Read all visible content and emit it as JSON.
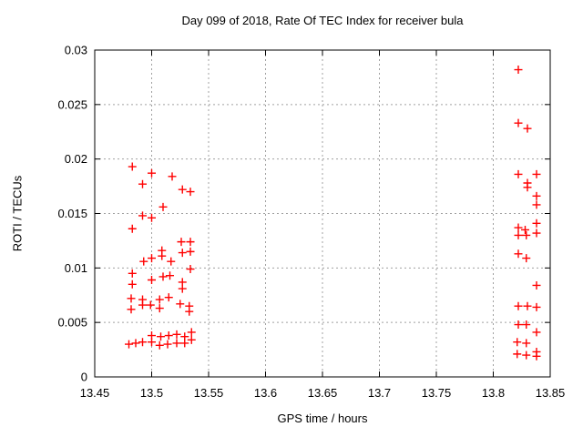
{
  "figure": {
    "title": "Day 099 of 2018, Rate Of TEC Index for receiver bula",
    "xlabel": "GPS time / hours",
    "ylabel": "ROTI / TECUs"
  },
  "chart_data": {
    "type": "scatter",
    "title": "Day 099 of 2018, Rate Of TEC Index for receiver bula",
    "xlabel": "GPS time / hours",
    "ylabel": "ROTI / TECUs",
    "xlim": [
      13.45,
      13.85
    ],
    "ylim": [
      0,
      0.03
    ],
    "xtick_labels": [
      "13.45",
      "13.5",
      "13.55",
      "13.6",
      "13.65",
      "13.7",
      "13.75",
      "13.8",
      "13.85"
    ],
    "ytick_labels": [
      "0",
      "0.005",
      "0.01",
      "0.015",
      "0.02",
      "0.025",
      "0.03"
    ],
    "grid": true,
    "grid_color": "#a0a0a0",
    "border_color": "#000000",
    "legend": "none",
    "series": [
      {
        "name": "ROTI",
        "marker": "plus",
        "color": "#ff0000",
        "points": [
          [
            13.483,
            0.0193
          ],
          [
            13.492,
            0.0177
          ],
          [
            13.5,
            0.0187
          ],
          [
            13.518,
            0.0184
          ],
          [
            13.527,
            0.0172
          ],
          [
            13.534,
            0.017
          ],
          [
            13.51,
            0.0156
          ],
          [
            13.492,
            0.0148
          ],
          [
            13.5,
            0.0146
          ],
          [
            13.483,
            0.0136
          ],
          [
            13.526,
            0.0124
          ],
          [
            13.534,
            0.0124
          ],
          [
            13.509,
            0.0116
          ],
          [
            13.509,
            0.0111
          ],
          [
            13.527,
            0.0114
          ],
          [
            13.534,
            0.0115
          ],
          [
            13.493,
            0.0106
          ],
          [
            13.5,
            0.0109
          ],
          [
            13.517,
            0.0106
          ],
          [
            13.534,
            0.0099
          ],
          [
            13.483,
            0.0095
          ],
          [
            13.5,
            0.0089
          ],
          [
            13.51,
            0.0092
          ],
          [
            13.516,
            0.0093
          ],
          [
            13.483,
            0.0085
          ],
          [
            13.527,
            0.0087
          ],
          [
            13.527,
            0.0081
          ],
          [
            13.482,
            0.0072
          ],
          [
            13.482,
            0.0062
          ],
          [
            13.492,
            0.0071
          ],
          [
            13.492,
            0.0066
          ],
          [
            13.499,
            0.0066
          ],
          [
            13.507,
            0.0071
          ],
          [
            13.507,
            0.0063
          ],
          [
            13.515,
            0.0073
          ],
          [
            13.525,
            0.0067
          ],
          [
            13.533,
            0.0065
          ],
          [
            13.533,
            0.006
          ],
          [
            13.48,
            0.003
          ],
          [
            13.486,
            0.0031
          ],
          [
            13.492,
            0.0032
          ],
          [
            13.5,
            0.0038
          ],
          [
            13.5,
            0.0032
          ],
          [
            13.508,
            0.0037
          ],
          [
            13.507,
            0.0029
          ],
          [
            13.515,
            0.0038
          ],
          [
            13.514,
            0.003
          ],
          [
            13.522,
            0.0039
          ],
          [
            13.522,
            0.0031
          ],
          [
            13.529,
            0.0037
          ],
          [
            13.529,
            0.0031
          ],
          [
            13.535,
            0.0041
          ],
          [
            13.535,
            0.0034
          ],
          [
            13.822,
            0.0282
          ],
          [
            13.822,
            0.0233
          ],
          [
            13.83,
            0.0228
          ],
          [
            13.822,
            0.0186
          ],
          [
            13.838,
            0.0186
          ],
          [
            13.83,
            0.0178
          ],
          [
            13.83,
            0.0174
          ],
          [
            13.838,
            0.0166
          ],
          [
            13.838,
            0.0158
          ],
          [
            13.822,
            0.0137
          ],
          [
            13.828,
            0.0135
          ],
          [
            13.838,
            0.0141
          ],
          [
            13.838,
            0.0132
          ],
          [
            13.822,
            0.013
          ],
          [
            13.829,
            0.013
          ],
          [
            13.822,
            0.0113
          ],
          [
            13.829,
            0.0109
          ],
          [
            13.838,
            0.0084
          ],
          [
            13.822,
            0.0065
          ],
          [
            13.83,
            0.0065
          ],
          [
            13.838,
            0.0064
          ],
          [
            13.822,
            0.0048
          ],
          [
            13.829,
            0.0048
          ],
          [
            13.838,
            0.0041
          ],
          [
            13.821,
            0.0032
          ],
          [
            13.829,
            0.0031
          ],
          [
            13.838,
            0.0023
          ],
          [
            13.821,
            0.0021
          ],
          [
            13.829,
            0.002
          ],
          [
            13.838,
            0.0019
          ]
        ]
      }
    ]
  }
}
